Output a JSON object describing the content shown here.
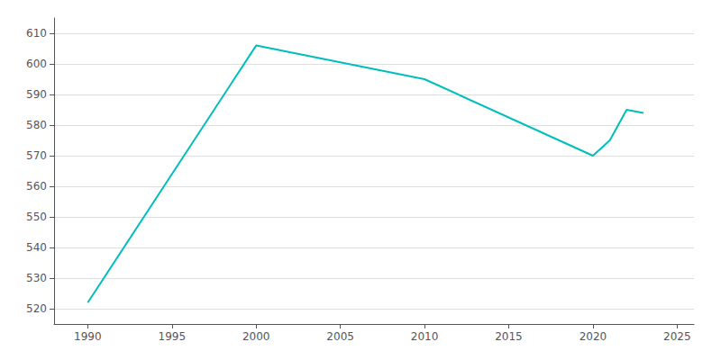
{
  "chart_data": {
    "type": "line",
    "x": [
      1990,
      2000,
      2010,
      2020,
      2021,
      2022,
      2023
    ],
    "values": [
      522,
      606,
      595,
      570,
      575,
      585,
      584
    ],
    "color": "#00BEBE",
    "xlim": [
      1988,
      2026
    ],
    "ylim": [
      515,
      615
    ],
    "xticks": [
      1990,
      1995,
      2000,
      2005,
      2010,
      2015,
      2020,
      2025
    ],
    "yticks": [
      520,
      530,
      540,
      550,
      560,
      570,
      580,
      590,
      600,
      610
    ],
    "grid": "y"
  }
}
